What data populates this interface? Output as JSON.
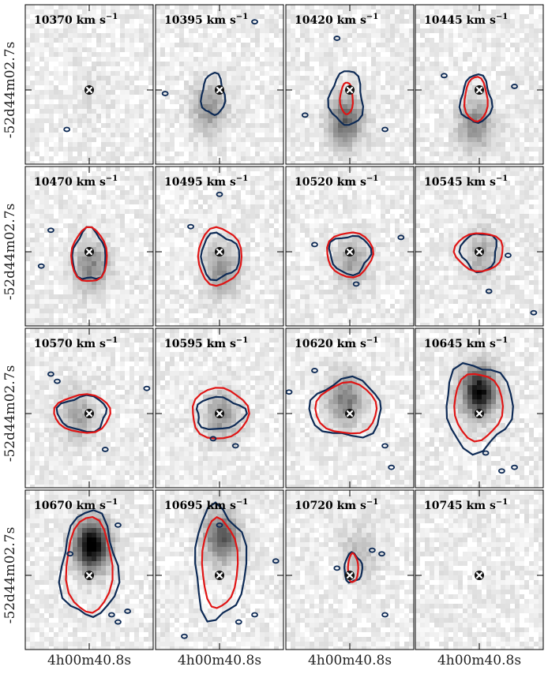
{
  "chart_data": {
    "type": "heatmap",
    "description_rows": 4,
    "description_cols": 4,
    "panel_label_unit": "km s",
    "panel_label_exp": "−1",
    "x_tick_label": "4h00m40.8s",
    "y_tick_label": "-52d44m02.7s",
    "colors": {
      "contour_outer": "#0d2a55",
      "contour_inner": "#e01515",
      "marker": "#111111"
    },
    "panels": [
      {
        "velocity": "10370",
        "intensity": 0.05,
        "blob": [
          0.0,
          0.0
        ],
        "outer": null,
        "inner": null,
        "specks": [
          [
            -0.35,
            0.55
          ]
        ]
      },
      {
        "velocity": "10395",
        "intensity": 0.35,
        "blob": [
          -0.1,
          0.1
        ],
        "outer": [
          0.09,
          0.13
        ],
        "inner": null,
        "specks": [
          [
            -0.85,
            0.05
          ],
          [
            0.55,
            -0.95
          ]
        ]
      },
      {
        "velocity": "10420",
        "intensity": 0.55,
        "blob": [
          -0.05,
          0.18
        ],
        "outer": [
          0.13,
          0.17
        ],
        "inner": [
          0.05,
          0.1
        ],
        "specks": [
          [
            -0.7,
            0.35
          ],
          [
            -0.2,
            -0.72
          ],
          [
            0.55,
            0.55
          ]
        ]
      },
      {
        "velocity": "10445",
        "intensity": 0.4,
        "blob": [
          -0.05,
          0.2
        ],
        "outer": [
          0.12,
          0.15
        ],
        "inner": [
          0.09,
          0.14
        ],
        "specks": [
          [
            -0.55,
            -0.2
          ],
          [
            0.55,
            -0.05
          ]
        ]
      },
      {
        "velocity": "10470",
        "intensity": 0.4,
        "blob": [
          0.0,
          0.08
        ],
        "outer": [
          0.13,
          0.16
        ],
        "inner": [
          0.14,
          0.17
        ],
        "specks": [
          [
            -0.6,
            -0.3
          ],
          [
            -0.75,
            0.2
          ]
        ]
      },
      {
        "velocity": "10495",
        "intensity": 0.35,
        "blob": [
          0.0,
          0.1
        ],
        "outer": [
          0.15,
          0.14
        ],
        "inner": [
          0.17,
          0.18
        ],
        "specks": [
          [
            0.0,
            -0.8
          ],
          [
            -0.45,
            -0.35
          ]
        ]
      },
      {
        "velocity": "10520",
        "intensity": 0.3,
        "blob": [
          0.0,
          0.05
        ],
        "outer": [
          0.16,
          0.12
        ],
        "inner": [
          0.18,
          0.14
        ],
        "specks": [
          [
            -0.55,
            -0.1
          ],
          [
            0.8,
            -0.2
          ],
          [
            0.1,
            0.45
          ]
        ]
      },
      {
        "velocity": "10545",
        "intensity": 0.25,
        "blob": [
          0.0,
          0.0
        ],
        "outer": [
          0.14,
          0.12
        ],
        "inner": [
          0.19,
          0.12
        ],
        "specks": [
          [
            0.15,
            0.55
          ],
          [
            0.85,
            0.85
          ],
          [
            0.45,
            0.05
          ]
        ]
      },
      {
        "velocity": "10570",
        "intensity": 0.3,
        "blob": [
          -0.1,
          0.0
        ],
        "outer": [
          0.19,
          0.11
        ],
        "inner": [
          0.22,
          0.12
        ],
        "specks": [
          [
            -0.5,
            -0.45
          ],
          [
            -0.6,
            -0.55
          ],
          [
            0.25,
            0.5
          ],
          [
            0.9,
            -0.35
          ]
        ]
      },
      {
        "velocity": "10595",
        "intensity": 0.35,
        "blob": [
          0.0,
          0.0
        ],
        "outer": [
          0.19,
          0.1
        ],
        "inner": [
          0.22,
          0.16
        ],
        "specks": [
          [
            -0.1,
            0.35
          ],
          [
            0.25,
            0.45
          ]
        ]
      },
      {
        "velocity": "10620",
        "intensity": 0.45,
        "blob": [
          -0.05,
          -0.1
        ],
        "outer": [
          0.28,
          0.18
        ],
        "inner": [
          0.24,
          0.16
        ],
        "specks": [
          [
            -0.55,
            -0.6
          ],
          [
            -0.95,
            -0.3
          ],
          [
            0.55,
            0.45
          ],
          [
            0.65,
            0.75
          ]
        ]
      },
      {
        "velocity": "10645",
        "intensity": 0.9,
        "blob": [
          -0.02,
          -0.15
        ],
        "outer": [
          0.26,
          0.27
        ],
        "inner": [
          0.19,
          0.21
        ],
        "specks": [
          [
            0.1,
            0.55
          ],
          [
            0.35,
            0.8
          ],
          [
            0.55,
            0.75
          ]
        ]
      },
      {
        "velocity": "10670",
        "intensity": 1.0,
        "blob": [
          0.0,
          -0.2
        ],
        "outer": [
          0.22,
          0.33
        ],
        "inner": [
          0.18,
          0.3
        ],
        "specks": [
          [
            -0.3,
            -0.3
          ],
          [
            0.35,
            0.55
          ],
          [
            0.45,
            0.65
          ],
          [
            0.6,
            0.5
          ],
          [
            0.45,
            -0.7
          ]
        ]
      },
      {
        "velocity": "10695",
        "intensity": 0.6,
        "blob": [
          0.0,
          -0.25
        ],
        "outer": [
          0.2,
          0.35
        ],
        "inner": [
          0.14,
          0.28
        ],
        "specks": [
          [
            0.0,
            -0.7
          ],
          [
            0.55,
            0.55
          ],
          [
            0.3,
            0.65
          ],
          [
            -0.55,
            0.85
          ],
          [
            0.88,
            -0.2
          ]
        ]
      },
      {
        "velocity": "10720",
        "intensity": 0.2,
        "blob": [
          0.05,
          -0.15
        ],
        "outer": [
          0.07,
          0.09
        ],
        "inner": [
          0.04,
          0.09
        ],
        "specks": [
          [
            0.35,
            -0.35
          ],
          [
            0.5,
            -0.3
          ],
          [
            0.55,
            0.55
          ],
          [
            -0.2,
            -0.1
          ]
        ]
      },
      {
        "velocity": "10745",
        "intensity": 0.0,
        "blob": [
          0.0,
          0.0
        ],
        "outer": null,
        "inner": null,
        "specks": []
      }
    ]
  }
}
